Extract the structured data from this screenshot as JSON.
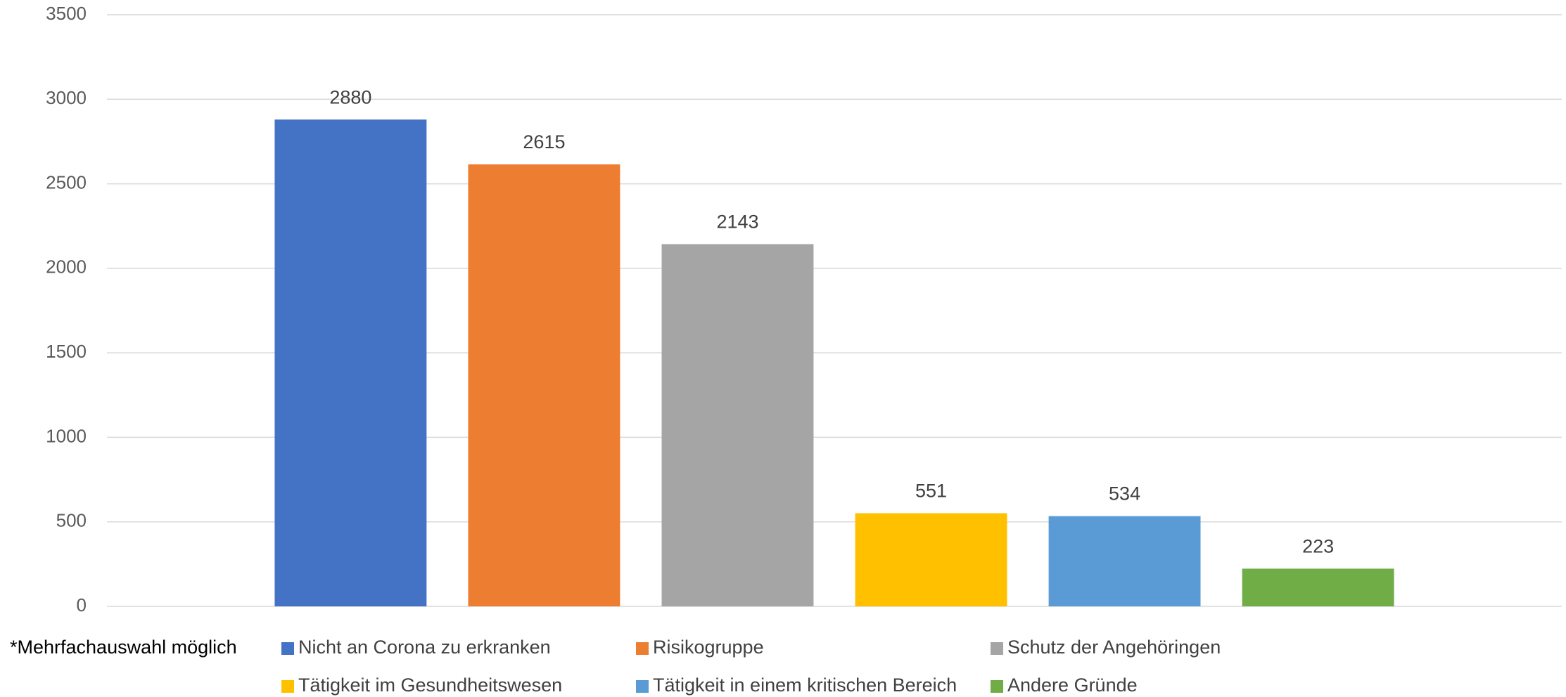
{
  "chart_data": {
    "type": "bar",
    "annotation": "*Mehrfachauswahl möglich",
    "categories": [
      null
    ],
    "series": [
      {
        "name": "Nicht an Corona zu erkranken",
        "color": "#4472c4",
        "values": [
          2880
        ]
      },
      {
        "name": "Risikogruppe",
        "color": "#ed7d31",
        "values": [
          2615
        ]
      },
      {
        "name": "Schutz der Angehöringen",
        "color": "#a5a5a5",
        "values": [
          2143
        ]
      },
      {
        "name": "Tätigkeit im Gesundheitswesen",
        "color": "#ffc000",
        "values": [
          551
        ]
      },
      {
        "name": "Tätigkeit in einem kritischen Bereich",
        "color": "#5b9bd5",
        "values": [
          534
        ]
      },
      {
        "name": "Andere Gründe",
        "color": "#70ad47",
        "values": [
          223
        ]
      }
    ],
    "ylim": [
      0,
      3500
    ],
    "yticks": [
      0,
      500,
      1000,
      1500,
      2000,
      2500,
      3000,
      3500
    ],
    "grid": true,
    "legend": "bottom"
  }
}
